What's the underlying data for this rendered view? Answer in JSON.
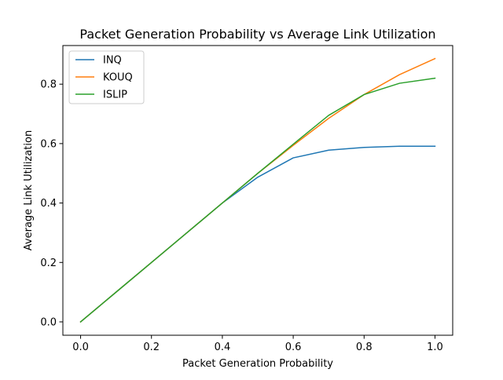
{
  "chart_data": {
    "type": "line",
    "title": "Packet Generation Probability vs Average Link Utilization",
    "xlabel": "Packet Generation Probability",
    "ylabel": "Average Link Utilization",
    "xlim": [
      -0.05,
      1.05
    ],
    "ylim": [
      -0.045,
      0.93
    ],
    "xticks": [
      0.0,
      0.2,
      0.4,
      0.6,
      0.8,
      1.0
    ],
    "xtick_labels": [
      "0.0",
      "0.2",
      "0.4",
      "0.6",
      "0.8",
      "1.0"
    ],
    "yticks": [
      0.0,
      0.2,
      0.4,
      0.6,
      0.8
    ],
    "ytick_labels": [
      "0.0",
      "0.2",
      "0.4",
      "0.6",
      "0.8"
    ],
    "grid": false,
    "legend_position": "upper-left",
    "x": [
      0.0,
      0.1,
      0.2,
      0.3,
      0.4,
      0.5,
      0.6,
      0.7,
      0.8,
      0.9,
      1.0
    ],
    "series": [
      {
        "name": "INQ",
        "color": "#1f77b4",
        "values": [
          0.0,
          0.1,
          0.2,
          0.3,
          0.4,
          0.487,
          0.552,
          0.578,
          0.587,
          0.591,
          0.591
        ]
      },
      {
        "name": "KOUQ",
        "color": "#ff7f0e",
        "values": [
          0.0,
          0.1,
          0.2,
          0.3,
          0.4,
          0.5,
          0.594,
          0.685,
          0.765,
          0.832,
          0.886
        ]
      },
      {
        "name": "ISLIP",
        "color": "#2ca02c",
        "values": [
          0.0,
          0.1,
          0.2,
          0.3,
          0.4,
          0.5,
          0.598,
          0.695,
          0.765,
          0.803,
          0.82
        ]
      }
    ]
  }
}
